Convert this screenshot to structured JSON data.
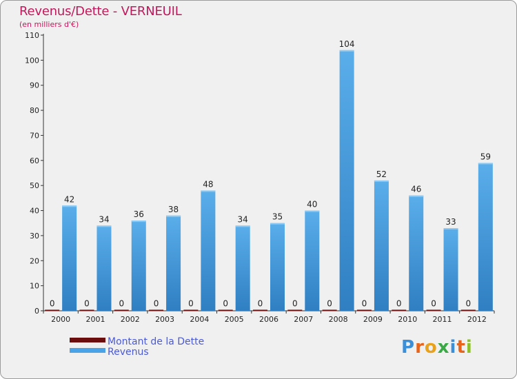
{
  "chart_data": {
    "type": "bar",
    "title": "Revenus/Dette - VERNEUIL",
    "subtitle": "(en milliers d'€)",
    "categories": [
      "2000",
      "2001",
      "2002",
      "2003",
      "2004",
      "2005",
      "2006",
      "2007",
      "2008",
      "2009",
      "2010",
      "2011",
      "2012"
    ],
    "series": [
      {
        "name": "Montant de la Dette",
        "color": "#6b0d0d",
        "values": [
          0,
          0,
          0,
          0,
          0,
          0,
          0,
          0,
          0,
          0,
          0,
          0,
          0
        ]
      },
      {
        "name": "Revenus",
        "color": "#4aa3e6",
        "values": [
          42,
          34,
          36,
          38,
          48,
          34,
          35,
          40,
          104,
          52,
          46,
          33,
          59
        ]
      }
    ],
    "ylim": [
      0,
      110
    ],
    "yticks": [
      0,
      10,
      20,
      30,
      40,
      50,
      60,
      70,
      80,
      90,
      100,
      110
    ],
    "xlabel": "",
    "ylabel": "",
    "grid": false,
    "legend_position": "bottom-left"
  },
  "branding": {
    "logo_text": "Proxiti",
    "logo_letters": [
      {
        "char": "P",
        "color": "#3b8fd9"
      },
      {
        "char": "r",
        "color": "#e8641b"
      },
      {
        "char": "o",
        "color": "#e8a21b"
      },
      {
        "char": "x",
        "color": "#3aa845"
      },
      {
        "char": "i",
        "color": "#3b8fd9"
      },
      {
        "char": "t",
        "color": "#e8641b"
      },
      {
        "char": "i",
        "color": "#8fbf2a"
      }
    ]
  }
}
